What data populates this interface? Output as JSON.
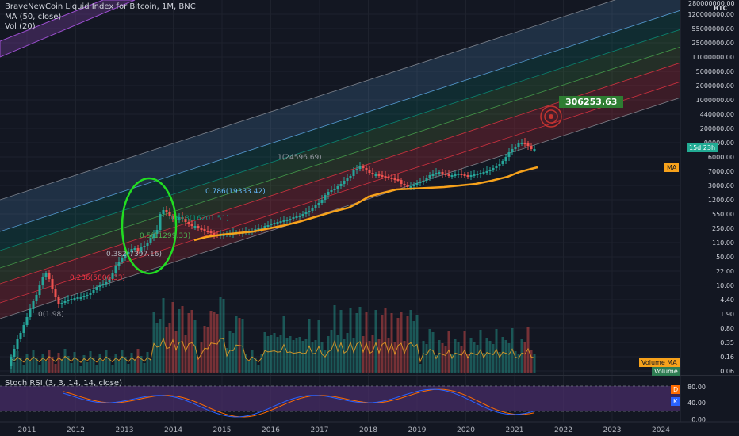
{
  "header": {
    "symbol_line": "BraveNewCoin Liquid Index for Bitcoin, 1M, BNC",
    "ma_line": "MA (50, close)",
    "vol_line": "Vol (20)",
    "currency": "BTC"
  },
  "price_axis": {
    "labels": [
      "120000000.00",
      "55000000.00",
      "25000000.00",
      "11000000.00",
      "5000000.00",
      "2000000.00",
      "1000000.00",
      "440000.00",
      "200000.00",
      "90000.00",
      "16000.00",
      "7000.00",
      "3000.00",
      "1200.00",
      "550.00",
      "250.00",
      "110.00",
      "50.00",
      "22.00",
      "10.00",
      "4.40",
      "1.90",
      "0.80",
      "0.35",
      "0.16",
      "0.06"
    ],
    "top_label": "280000000.00",
    "countdown": "15d 23h",
    "ma_tag": "MA",
    "volume_ma_tag": "Volume MA",
    "volume_tag": "Volume"
  },
  "rsi": {
    "title": "Stoch RSI (3, 3, 14, 14, close)",
    "axis": [
      "80.00",
      "40.00",
      "0.00"
    ],
    "d_tag": "D",
    "k_tag": "K",
    "colors": {
      "k": "#2962ff",
      "d": "#ff6d00",
      "band": "#4a2d6b"
    }
  },
  "annotation": {
    "target_value": "306253.63"
  },
  "fib_labels": [
    {
      "text": "0(1.98)",
      "color": "#9598a1"
    },
    {
      "text": "0.236(5806.33)",
      "color": "#f23645"
    },
    {
      "text": "0.382(7397.16)",
      "color": "#b2b5be"
    },
    {
      "text": "0.5(11299.33)",
      "color": "#4caf50"
    },
    {
      "text": "0.618(16201.51)",
      "color": "#089981"
    },
    {
      "text": "0.786(19333.42)",
      "color": "#64b5f6"
    },
    {
      "text": "1(24596.69)",
      "color": "#9598a1"
    }
  ],
  "x_axis": {
    "years": [
      "2011",
      "2012",
      "2013",
      "2014",
      "2015",
      "2016",
      "2017",
      "2018",
      "2019",
      "2020",
      "2021",
      "2022",
      "2023",
      "2024"
    ]
  },
  "chart_data": {
    "type": "candlestick",
    "title": "BraveNewCoin Liquid Index for Bitcoin, 1M, BNC",
    "currency": "BTC",
    "y_scale": "log",
    "yearly_close_approx": [
      {
        "x": "2011",
        "y": 0.3
      },
      {
        "x": "2012",
        "y": 5
      },
      {
        "x": "2013",
        "y": 13
      },
      {
        "x": "2014",
        "y": 800
      },
      {
        "x": "2015",
        "y": 320
      },
      {
        "x": "2016",
        "y": 430
      },
      {
        "x": "2017",
        "y": 1000
      },
      {
        "x": "2018",
        "y": 14000
      },
      {
        "x": "2019",
        "y": 3700
      },
      {
        "x": "2020",
        "y": 7200
      },
      {
        "x": "2021",
        "y": 29000
      },
      {
        "x": "2021-06",
        "y": 35000
      }
    ],
    "indicators": [
      "MA (50, close)",
      "Vol (20)",
      "Stoch RSI (3, 3, 14, 14, close)"
    ],
    "target_label": "306253.63"
  }
}
